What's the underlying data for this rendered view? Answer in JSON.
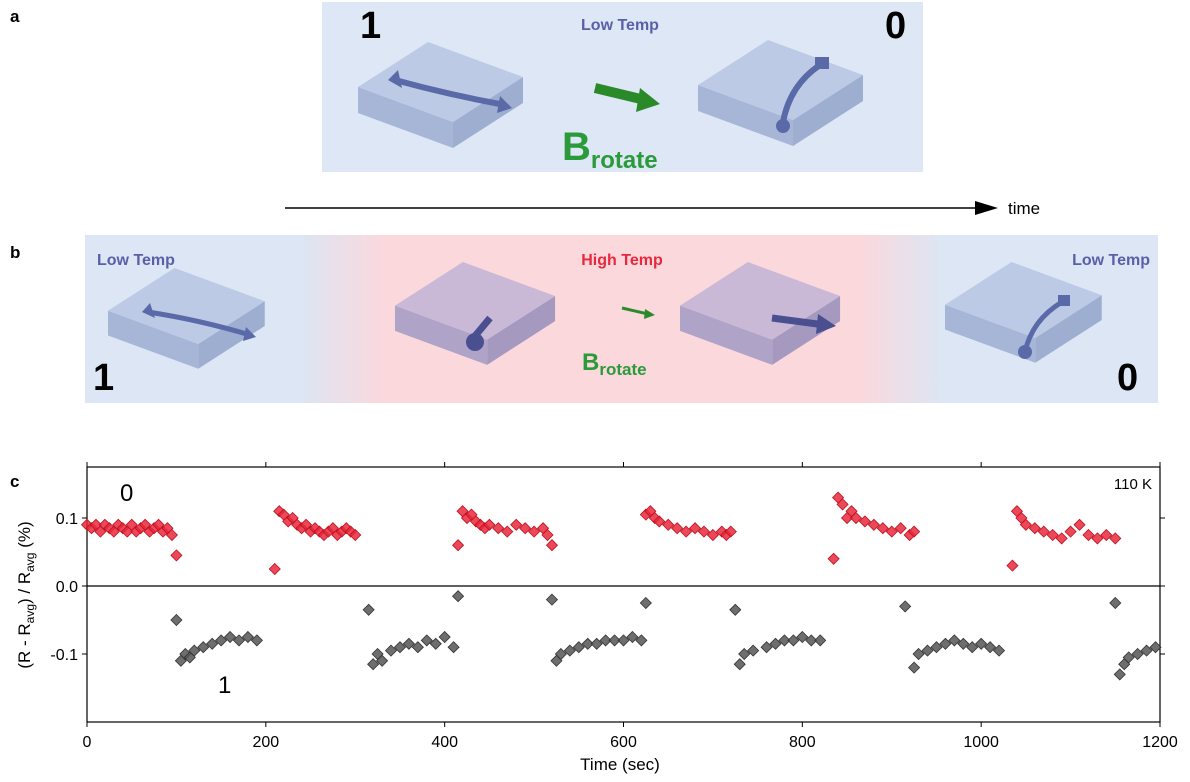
{
  "panel_a": {
    "label": "a",
    "title": "Low Temp",
    "left_state": "1",
    "right_state": "0",
    "field": {
      "main": "B",
      "sub": "rotate"
    }
  },
  "timeline": "time",
  "panel_b": {
    "label": "b",
    "left_title": "Low Temp",
    "middle_title": "High Temp",
    "right_title": "Low Temp",
    "left_state": "1",
    "right_state": "0",
    "field": {
      "main": "B",
      "sub": "rotate"
    }
  },
  "chart_data": {
    "type": "scatter",
    "panel_label": "c",
    "xlabel": "Time (sec)",
    "ylabel": [
      "(R - R",
      "avg",
      ") / R",
      "avg",
      " (%)"
    ],
    "annotations": [
      "0",
      "1",
      "110 K"
    ],
    "xlim": [
      0,
      1200
    ],
    "xticks": [
      0,
      200,
      400,
      600,
      800,
      1000,
      1200
    ],
    "ylim": [
      -0.2,
      0.175
    ],
    "yticks": [
      -0.1,
      {
        "value": 0,
        "label": "0.0"
      },
      0.1
    ],
    "series": [
      {
        "color": "#e8283c",
        "x": [
          0,
          5,
          10,
          15,
          20,
          25,
          30,
          35,
          40,
          45,
          50,
          55,
          60,
          65,
          70,
          75,
          80,
          85,
          90,
          95,
          100,
          210,
          215,
          220,
          225,
          230,
          235,
          240,
          245,
          250,
          255,
          260,
          265,
          270,
          275,
          280,
          285,
          290,
          295,
          300,
          415,
          420,
          425,
          430,
          435,
          440,
          445,
          450,
          460,
          470,
          480,
          490,
          500,
          510,
          515,
          520,
          625,
          630,
          635,
          640,
          650,
          660,
          670,
          680,
          690,
          700,
          710,
          715,
          720,
          835,
          840,
          845,
          850,
          855,
          860,
          870,
          880,
          890,
          900,
          910,
          920,
          925,
          1035,
          1040,
          1045,
          1050,
          1060,
          1070,
          1080,
          1090,
          1100,
          1110,
          1120,
          1130,
          1140,
          1150
        ],
        "values": [
          0.09,
          0.085,
          0.09,
          0.08,
          0.09,
          0.085,
          0.08,
          0.09,
          0.085,
          0.08,
          0.09,
          0.08,
          0.085,
          0.09,
          0.08,
          0.085,
          0.09,
          0.08,
          0.085,
          0.075,
          0.045,
          0.025,
          0.11,
          0.105,
          0.095,
          0.1,
          0.09,
          0.085,
          0.09,
          0.08,
          0.085,
          0.08,
          0.075,
          0.08,
          0.085,
          0.075,
          0.08,
          0.085,
          0.08,
          0.075,
          0.06,
          0.11,
          0.1,
          0.105,
          0.095,
          0.09,
          0.085,
          0.09,
          0.085,
          0.08,
          0.09,
          0.085,
          0.08,
          0.085,
          0.075,
          0.06,
          0.105,
          0.11,
          0.1,
          0.095,
          0.09,
          0.085,
          0.08,
          0.085,
          0.08,
          0.075,
          0.08,
          0.075,
          0.08,
          0.04,
          0.13,
          0.12,
          0.1,
          0.11,
          0.1,
          0.095,
          0.09,
          0.085,
          0.08,
          0.085,
          0.075,
          0.08,
          0.03,
          0.11,
          0.1,
          0.09,
          0.085,
          0.08,
          0.075,
          0.07,
          0.08,
          0.09,
          0.075,
          0.07,
          0.075,
          0.07
        ]
      },
      {
        "color": "#555555",
        "x": [
          100,
          105,
          110,
          115,
          120,
          130,
          140,
          150,
          160,
          170,
          180,
          190,
          315,
          320,
          325,
          330,
          340,
          350,
          360,
          370,
          380,
          390,
          400,
          410,
          415,
          520,
          525,
          530,
          540,
          550,
          560,
          570,
          580,
          590,
          600,
          610,
          620,
          625,
          725,
          730,
          735,
          745,
          760,
          770,
          780,
          790,
          800,
          810,
          820,
          915,
          925,
          930,
          940,
          950,
          960,
          970,
          980,
          990,
          1000,
          1010,
          1020,
          1150,
          1155,
          1160,
          1165,
          1175,
          1185,
          1195
        ],
        "values": [
          -0.05,
          -0.11,
          -0.1,
          -0.105,
          -0.095,
          -0.09,
          -0.085,
          -0.08,
          -0.075,
          -0.08,
          -0.075,
          -0.08,
          -0.035,
          -0.115,
          -0.1,
          -0.11,
          -0.095,
          -0.09,
          -0.085,
          -0.09,
          -0.08,
          -0.085,
          -0.075,
          -0.09,
          -0.015,
          -0.02,
          -0.11,
          -0.1,
          -0.095,
          -0.09,
          -0.085,
          -0.085,
          -0.08,
          -0.08,
          -0.08,
          -0.075,
          -0.08,
          -0.025,
          -0.035,
          -0.115,
          -0.1,
          -0.095,
          -0.09,
          -0.085,
          -0.08,
          -0.08,
          -0.075,
          -0.08,
          -0.08,
          -0.03,
          -0.12,
          -0.1,
          -0.095,
          -0.09,
          -0.085,
          -0.08,
          -0.085,
          -0.09,
          -0.085,
          -0.09,
          -0.095,
          -0.025,
          -0.13,
          -0.115,
          -0.105,
          -0.1,
          -0.095,
          -0.09
        ]
      }
    ]
  }
}
